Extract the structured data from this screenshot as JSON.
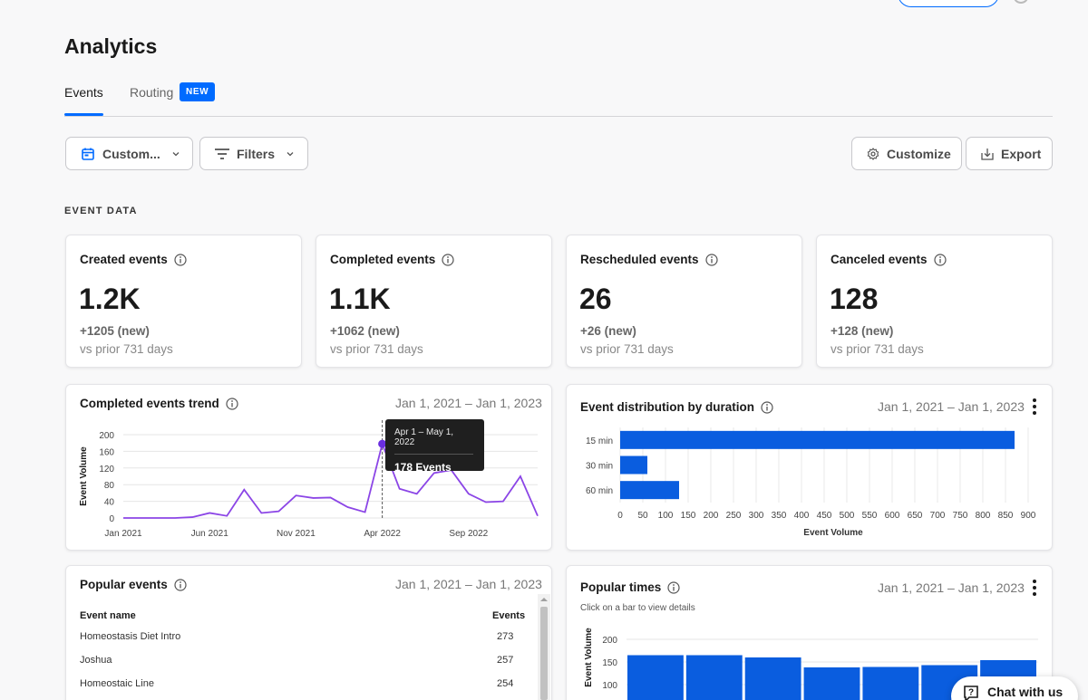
{
  "page": {
    "title": "Analytics"
  },
  "tabs": [
    {
      "label": "Events",
      "active": true
    },
    {
      "label": "Routing",
      "badge": "NEW"
    }
  ],
  "toolbar": {
    "date_filter": "Custom...",
    "filters": "Filters",
    "customize": "Customize",
    "export": "Export"
  },
  "section": {
    "event_data": "EVENT DATA"
  },
  "stats": [
    {
      "title": "Created events",
      "value": "1.2K",
      "change": "+1205 (new)",
      "prior": "vs prior 731 days"
    },
    {
      "title": "Completed events",
      "value": "1.1K",
      "change": "+1062 (new)",
      "prior": "vs prior 731 days"
    },
    {
      "title": "Rescheduled events",
      "value": "26",
      "change": "+26 (new)",
      "prior": "vs prior 731 days"
    },
    {
      "title": "Canceled events",
      "value": "128",
      "change": "+128 (new)",
      "prior": "vs prior 731 days"
    }
  ],
  "trend": {
    "title": "Completed events trend",
    "range": "Jan 1, 2021 – Jan 1, 2023",
    "tooltip": {
      "period": "Apr 1 – May 1, 2022",
      "value": "178 Events"
    }
  },
  "distribution": {
    "title": "Event distribution by duration",
    "range": "Jan 1, 2021 – Jan 1, 2023"
  },
  "popular_events": {
    "title": "Popular events",
    "range": "Jan 1, 2021 – Jan 1, 2023",
    "col_name": "Event name",
    "col_events": "Events",
    "rows": [
      {
        "name": "Homeostasis Diet Intro",
        "events": "273"
      },
      {
        "name": "Joshua",
        "events": "257"
      },
      {
        "name": "Homeostaic Line",
        "events": "254"
      }
    ]
  },
  "popular_times": {
    "title": "Popular times",
    "subtitle": "Click on a bar to view details",
    "range": "Jan 1, 2021 – Jan 1, 2023"
  },
  "chat": {
    "label": "Chat with us"
  },
  "colors": {
    "accent": "#006bff",
    "line": "#8b45e6",
    "bar": "#0a5ddf"
  },
  "chart_data": [
    {
      "type": "line",
      "ylabel": "Event Volume",
      "ylim": [
        0,
        200
      ],
      "yticks": [
        0,
        40,
        80,
        120,
        160,
        200
      ],
      "x_tick_labels": [
        "Jan 2021",
        "Jun 2021",
        "Nov 2021",
        "Apr 2022",
        "Sep 2022"
      ],
      "x_tick_index": [
        0,
        5,
        10,
        15,
        20
      ],
      "values": [
        0,
        0,
        0,
        0,
        2,
        12,
        5,
        68,
        12,
        16,
        54,
        48,
        49,
        26,
        14,
        178,
        70,
        58,
        108,
        115,
        58,
        38,
        40,
        100,
        5
      ],
      "highlight_index": 15,
      "grid": true
    },
    {
      "type": "bar",
      "orientation": "horizontal",
      "categories": [
        "15 min",
        "30 min",
        "60 min"
      ],
      "values": [
        870,
        60,
        130
      ],
      "xlabel": "Event Volume",
      "xlim": [
        0,
        900
      ],
      "xticks": [
        0,
        50,
        100,
        150,
        200,
        250,
        300,
        350,
        400,
        450,
        500,
        550,
        600,
        650,
        700,
        750,
        800,
        850,
        900
      ],
      "grid": true
    },
    {
      "type": "bar",
      "ylabel": "Event Volume",
      "yticks": [
        100,
        150,
        200
      ],
      "ylim": [
        80,
        200
      ],
      "values": [
        165,
        165,
        160,
        138,
        139,
        143,
        154
      ],
      "grid": true
    }
  ]
}
